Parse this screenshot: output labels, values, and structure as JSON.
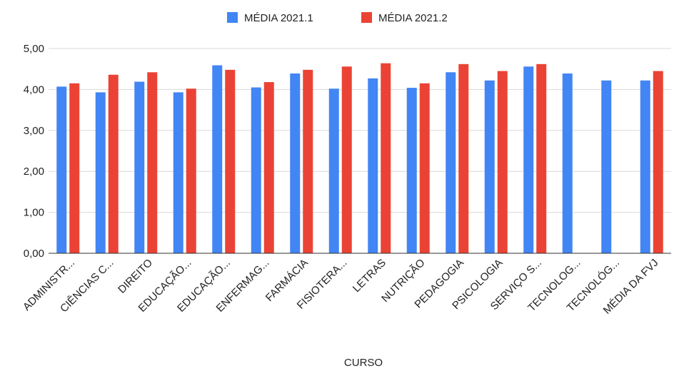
{
  "chart_data": {
    "type": "bar",
    "title": "",
    "xlabel": "CURSO",
    "ylabel": "",
    "ylim": [
      0,
      5
    ],
    "yticks": [
      "0,00",
      "1,00",
      "2,00",
      "3,00",
      "4,00",
      "5,00"
    ],
    "grid": true,
    "legend_position": "top",
    "categories": [
      "ADMINISTR...",
      "CIÊNCIAS C...",
      "DIREITO",
      "EDUCAÇÃO...",
      "EDUCAÇÃO...",
      "ENFERMAG...",
      "FARMÁCIA",
      "FISIOTERA...",
      "LETRAS",
      "NUTRIÇÃO",
      "PEDAGOGIA",
      "PSICOLOGIA",
      "SERVIÇO S...",
      "TECNOLOG...",
      "TECNOLÓG...",
      "MÉDIA DA FVJ"
    ],
    "series": [
      {
        "name": "MÉDIA 2021.1",
        "color": "#4285f4",
        "values": [
          4.07,
          3.93,
          4.19,
          3.93,
          4.59,
          4.05,
          4.39,
          4.02,
          4.27,
          4.04,
          4.42,
          4.22,
          4.56,
          4.39,
          4.22,
          4.22
        ]
      },
      {
        "name": "MÉDIA 2021.2",
        "color": "#ea4335",
        "values": [
          4.15,
          4.36,
          4.42,
          4.02,
          4.48,
          4.18,
          4.48,
          4.56,
          4.64,
          4.15,
          4.62,
          4.45,
          4.62,
          null,
          null,
          4.45
        ]
      }
    ]
  }
}
